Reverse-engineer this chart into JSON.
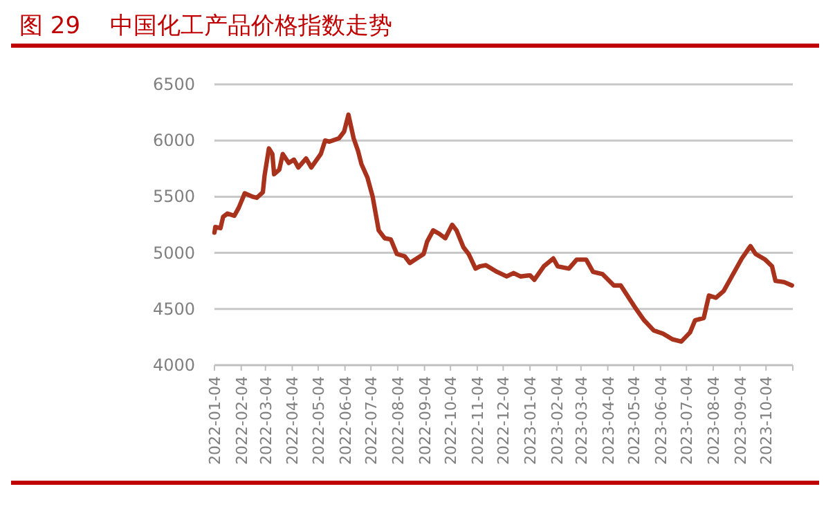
{
  "chart_data": {
    "type": "line",
    "title": "图 29    中国化工产品价格指数走势",
    "x": [
      "2022-01-04",
      "2022-01-05",
      "2022-01-11",
      "2022-01-14",
      "2022-01-19",
      "2022-01-27",
      "2022-02-01",
      "2022-02-08",
      "2022-02-17",
      "2022-02-22",
      "2022-03-01",
      "2022-03-03",
      "2022-03-08",
      "2022-03-12",
      "2022-03-14",
      "2022-03-20",
      "2022-03-24",
      "2022-03-31",
      "2022-04-06",
      "2022-04-11",
      "2022-04-20",
      "2022-04-26",
      "2022-05-07",
      "2022-05-12",
      "2022-05-17",
      "2022-05-28",
      "2022-06-03",
      "2022-06-08",
      "2022-06-14",
      "2022-06-19",
      "2022-06-23",
      "2022-06-30",
      "2022-07-06",
      "2022-07-13",
      "2022-07-20",
      "2022-07-27",
      "2022-08-03",
      "2022-08-12",
      "2022-08-18",
      "2022-08-28",
      "2022-09-03",
      "2022-09-07",
      "2022-09-14",
      "2022-09-21",
      "2022-09-28",
      "2022-10-06",
      "2022-10-11",
      "2022-10-19",
      "2022-10-25",
      "2022-11-02",
      "2022-11-07",
      "2022-11-14",
      "2022-11-27",
      "2022-12-08",
      "2022-12-16",
      "2022-12-24",
      "2023-01-04",
      "2023-01-09",
      "2023-01-20",
      "2023-01-31",
      "2023-02-05",
      "2023-02-18",
      "2023-02-27",
      "2023-03-10",
      "2023-03-18",
      "2023-03-29",
      "2023-04-11",
      "2023-04-19",
      "2023-05-05",
      "2023-05-16",
      "2023-05-27",
      "2023-06-07",
      "2023-06-18",
      "2023-06-28",
      "2023-07-08",
      "2023-07-14",
      "2023-07-24",
      "2023-07-30",
      "2023-08-07",
      "2023-08-16",
      "2023-08-24",
      "2023-09-06",
      "2023-09-16",
      "2023-09-22",
      "2023-10-03",
      "2023-10-11",
      "2023-10-15",
      "2023-10-25",
      "2023-11-03"
    ],
    "series": [
      {
        "color": "#a8321c",
        "values": [
          5180,
          5230,
          5220,
          5320,
          5350,
          5330,
          5400,
          5530,
          5500,
          5490,
          5540,
          5690,
          5930,
          5880,
          5700,
          5740,
          5880,
          5800,
          5830,
          5760,
          5840,
          5760,
          5880,
          6000,
          5990,
          6020,
          6080,
          6230,
          6020,
          5910,
          5790,
          5670,
          5500,
          5200,
          5130,
          5120,
          4990,
          4970,
          4910,
          4960,
          4990,
          5100,
          5200,
          5170,
          5130,
          5250,
          5200,
          5050,
          4990,
          4860,
          4880,
          4890,
          4830,
          4790,
          4820,
          4790,
          4800,
          4760,
          4880,
          4950,
          4880,
          4860,
          4940,
          4940,
          4830,
          4810,
          4710,
          4710,
          4520,
          4400,
          4310,
          4280,
          4230,
          4210,
          4290,
          4400,
          4420,
          4620,
          4600,
          4660,
          4770,
          4950,
          5060,
          4990,
          4940,
          4880,
          4750,
          4740,
          4710
        ]
      }
    ],
    "xlim": [
      "2022-01-04",
      "2023-11-04"
    ],
    "xticks": [
      "2022-01-04",
      "2022-02-04",
      "2022-03-04",
      "2022-04-04",
      "2022-05-04",
      "2022-06-04",
      "2022-07-04",
      "2022-08-04",
      "2022-09-04",
      "2022-10-04",
      "2022-11-04",
      "2022-12-04",
      "2023-01-04",
      "2023-02-04",
      "2023-03-04",
      "2023-04-04",
      "2023-05-04",
      "2023-06-04",
      "2023-07-04",
      "2023-08-04",
      "2023-09-04",
      "2023-10-04"
    ],
    "ylim": [
      4000,
      6500
    ],
    "yticks": [
      4000,
      4500,
      5000,
      5500,
      6000,
      6500
    ],
    "grid": "y",
    "marker": "none",
    "line_style": "solid"
  }
}
